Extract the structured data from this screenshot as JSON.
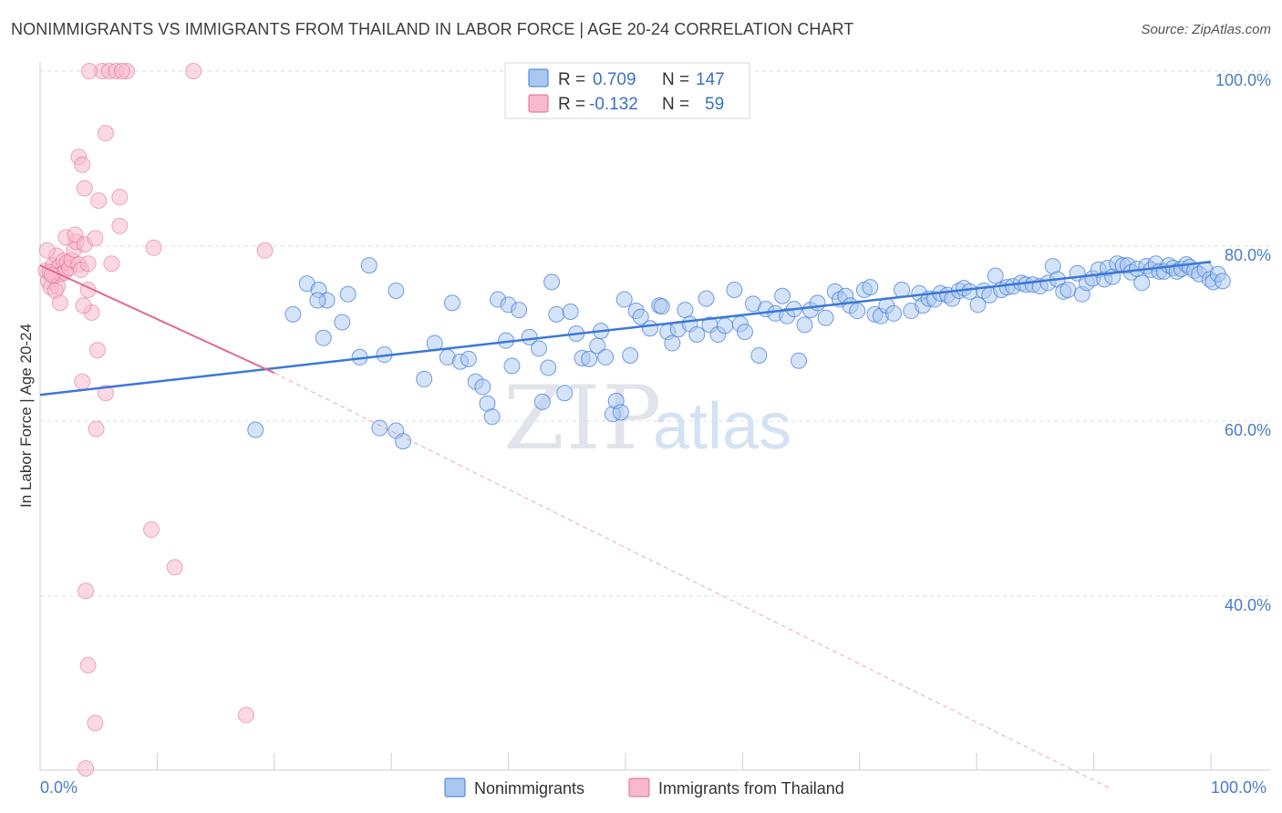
{
  "title": "NONIMMIGRANTS VS IMMIGRANTS FROM THAILAND IN LABOR FORCE | AGE 20-24 CORRELATION CHART",
  "source": "Source: ZipAtlas.com",
  "watermark": {
    "zip": "ZIP",
    "atlas": "atlas"
  },
  "legend_top": {
    "rows": [
      {
        "r_label": "R =",
        "r_value": "0.709",
        "n_label": "N =",
        "n_value": "147",
        "color": "#a9c8f0"
      },
      {
        "r_label": "R =",
        "r_value": "-0.132",
        "n_label": "N =",
        "n_value": "59",
        "color": "#f7b9cb"
      }
    ]
  },
  "legend_bottom": {
    "items": [
      {
        "label": "Nonimmigrants",
        "color": "#a9c8f0"
      },
      {
        "label": "Immigrants from Thailand",
        "color": "#f7b9cb"
      }
    ]
  },
  "chart_data": {
    "type": "scatter",
    "title": "NONIMMIGRANTS VS IMMIGRANTS FROM THAILAND IN LABOR FORCE | AGE 20-24 CORRELATION CHART",
    "xlabel": "",
    "ylabel": "In Labor Force | Age 20-24",
    "xlim": [
      0,
      100
    ],
    "ylim": [
      18,
      100
    ],
    "x_tick_labels": [
      "0.0%",
      "100.0%"
    ],
    "y_ticks": [
      40,
      60,
      80,
      100
    ],
    "y_tick_labels": [
      "40.0%",
      "60.0%",
      "80.0%",
      "100.0%"
    ],
    "series": [
      {
        "name": "Nonimmigrants",
        "color": "#3b78d8",
        "fill": "#a9c8f0",
        "r": 0.709,
        "n": 147,
        "trend": {
          "x": [
            0,
            100
          ],
          "y": [
            63.0,
            78.2
          ],
          "style": "solid"
        },
        "points": [
          [
            21.6,
            72.2
          ],
          [
            22.8,
            75.7
          ],
          [
            23.8,
            75.0
          ],
          [
            24.5,
            73.8
          ],
          [
            24.2,
            69.5
          ],
          [
            25.8,
            71.3
          ],
          [
            27.3,
            67.3
          ],
          [
            28.1,
            77.8
          ],
          [
            29.4,
            67.6
          ],
          [
            30.4,
            74.9
          ],
          [
            32.8,
            64.8
          ],
          [
            33.7,
            68.9
          ],
          [
            34.8,
            67.3
          ],
          [
            35.2,
            73.5
          ],
          [
            35.9,
            66.8
          ],
          [
            36.6,
            67.1
          ],
          [
            37.2,
            64.5
          ],
          [
            37.8,
            63.9
          ],
          [
            38.2,
            62.0
          ],
          [
            38.6,
            60.5
          ],
          [
            39.1,
            73.9
          ],
          [
            39.8,
            69.2
          ],
          [
            40.0,
            73.3
          ],
          [
            40.3,
            66.3
          ],
          [
            40.9,
            72.7
          ],
          [
            41.8,
            69.6
          ],
          [
            42.6,
            68.3
          ],
          [
            42.9,
            62.2
          ],
          [
            43.4,
            66.1
          ],
          [
            43.7,
            75.9
          ],
          [
            44.1,
            72.2
          ],
          [
            44.8,
            63.2
          ],
          [
            45.3,
            72.5
          ],
          [
            45.8,
            70.0
          ],
          [
            46.3,
            67.2
          ],
          [
            46.9,
            67.1
          ],
          [
            47.6,
            68.6
          ],
          [
            47.9,
            70.3
          ],
          [
            48.3,
            67.3
          ],
          [
            48.9,
            60.8
          ],
          [
            49.2,
            62.3
          ],
          [
            49.9,
            73.9
          ],
          [
            50.4,
            67.5
          ],
          [
            50.9,
            72.6
          ],
          [
            51.3,
            71.9
          ],
          [
            52.1,
            70.6
          ],
          [
            52.9,
            73.2
          ],
          [
            53.1,
            73.1
          ],
          [
            53.6,
            70.2
          ],
          [
            54.0,
            68.9
          ],
          [
            54.5,
            70.5
          ],
          [
            55.1,
            72.7
          ],
          [
            55.5,
            71.1
          ],
          [
            56.1,
            69.9
          ],
          [
            56.9,
            74.0
          ],
          [
            57.2,
            71.0
          ],
          [
            57.9,
            69.9
          ],
          [
            58.5,
            70.9
          ],
          [
            59.3,
            75.0
          ],
          [
            59.8,
            71.1
          ],
          [
            60.2,
            70.2
          ],
          [
            60.9,
            73.4
          ],
          [
            61.4,
            67.5
          ],
          [
            62.0,
            72.8
          ],
          [
            62.8,
            72.3
          ],
          [
            63.4,
            74.3
          ],
          [
            63.8,
            72.0
          ],
          [
            64.4,
            72.8
          ],
          [
            64.8,
            66.9
          ],
          [
            65.3,
            71.0
          ],
          [
            65.8,
            72.7
          ],
          [
            66.4,
            73.5
          ],
          [
            67.1,
            71.8
          ],
          [
            67.9,
            74.8
          ],
          [
            68.3,
            73.9
          ],
          [
            68.8,
            74.3
          ],
          [
            69.2,
            73.2
          ],
          [
            69.8,
            72.6
          ],
          [
            70.4,
            75.0
          ],
          [
            70.9,
            75.3
          ],
          [
            71.3,
            72.2
          ],
          [
            71.8,
            72.0
          ],
          [
            72.3,
            73.2
          ],
          [
            72.9,
            72.3
          ],
          [
            73.6,
            75.0
          ],
          [
            74.4,
            72.6
          ],
          [
            75.1,
            74.6
          ],
          [
            75.4,
            73.2
          ],
          [
            75.9,
            74.0
          ],
          [
            76.4,
            73.9
          ],
          [
            76.9,
            74.6
          ],
          [
            77.5,
            74.4
          ],
          [
            77.9,
            74.0
          ],
          [
            78.5,
            74.9
          ],
          [
            78.9,
            75.2
          ],
          [
            79.4,
            74.8
          ],
          [
            80.1,
            73.3
          ],
          [
            80.6,
            74.9
          ],
          [
            81.1,
            74.4
          ],
          [
            81.6,
            76.6
          ],
          [
            82.1,
            75.0
          ],
          [
            82.6,
            75.3
          ],
          [
            83.1,
            75.4
          ],
          [
            83.8,
            75.8
          ],
          [
            84.2,
            75.6
          ],
          [
            84.8,
            75.6
          ],
          [
            85.4,
            75.4
          ],
          [
            86.1,
            75.8
          ],
          [
            86.5,
            77.7
          ],
          [
            86.9,
            76.2
          ],
          [
            87.4,
            74.8
          ],
          [
            87.8,
            75.0
          ],
          [
            88.6,
            76.9
          ],
          [
            89.0,
            74.5
          ],
          [
            89.4,
            75.8
          ],
          [
            89.9,
            76.3
          ],
          [
            90.4,
            77.3
          ],
          [
            90.9,
            76.2
          ],
          [
            91.2,
            77.5
          ],
          [
            91.6,
            76.5
          ],
          [
            92.0,
            78.0
          ],
          [
            92.5,
            77.8
          ],
          [
            92.9,
            77.8
          ],
          [
            93.2,
            77.0
          ],
          [
            93.7,
            77.4
          ],
          [
            94.1,
            75.8
          ],
          [
            94.5,
            77.7
          ],
          [
            94.9,
            77.3
          ],
          [
            95.3,
            78.0
          ],
          [
            95.6,
            77.1
          ],
          [
            96.0,
            77.1
          ],
          [
            96.4,
            77.8
          ],
          [
            96.8,
            77.5
          ],
          [
            97.1,
            77.1
          ],
          [
            97.5,
            77.4
          ],
          [
            97.9,
            77.9
          ],
          [
            98.2,
            77.6
          ],
          [
            98.6,
            77.2
          ],
          [
            99.0,
            76.8
          ],
          [
            99.5,
            77.3
          ],
          [
            99.9,
            76.2
          ],
          [
            100.2,
            75.9
          ],
          [
            100.6,
            76.8
          ],
          [
            101.0,
            76.0
          ],
          [
            18.4,
            59.0
          ],
          [
            29.0,
            59.2
          ],
          [
            30.4,
            58.9
          ],
          [
            31.0,
            57.7
          ],
          [
            23.7,
            73.8
          ],
          [
            26.3,
            74.5
          ],
          [
            49.6,
            61.0
          ]
        ]
      },
      {
        "name": "Immigrants from Thailand",
        "color": "#e06a92",
        "fill": "#f7b9cb",
        "r": -0.132,
        "n": 59,
        "trend": {
          "x": [
            0,
            20
          ],
          "y": [
            77.8,
            65.5
          ],
          "style": "solid"
        },
        "trend_extension": {
          "x": [
            20,
            91.4
          ],
          "y": [
            65.5,
            18
          ],
          "style": "dashed"
        },
        "points": [
          [
            0.5,
            77.2
          ],
          [
            0.7,
            76.0
          ],
          [
            0.9,
            75.3
          ],
          [
            1.1,
            77.8
          ],
          [
            1.2,
            76.6
          ],
          [
            1.4,
            78.9
          ],
          [
            1.5,
            75.4
          ],
          [
            1.6,
            77.6
          ],
          [
            1.8,
            76.8
          ],
          [
            2.0,
            78.3
          ],
          [
            2.1,
            77.0
          ],
          [
            2.3,
            78.1
          ],
          [
            2.5,
            77.5
          ],
          [
            2.7,
            78.4
          ],
          [
            2.9,
            79.6
          ],
          [
            3.1,
            80.5
          ],
          [
            3.3,
            77.9
          ],
          [
            0.6,
            79.5
          ],
          [
            0.8,
            77.0
          ],
          [
            1.0,
            76.7
          ],
          [
            1.3,
            74.9
          ],
          [
            1.7,
            73.5
          ],
          [
            2.2,
            81.0
          ],
          [
            3.0,
            81.3
          ],
          [
            3.5,
            77.3
          ],
          [
            3.8,
            80.2
          ],
          [
            4.1,
            78.0
          ],
          [
            4.4,
            72.4
          ],
          [
            4.9,
            68.1
          ],
          [
            5.6,
            63.2
          ],
          [
            3.7,
            73.2
          ],
          [
            4.1,
            75.0
          ],
          [
            3.3,
            90.2
          ],
          [
            3.6,
            89.3
          ],
          [
            5.3,
            100
          ],
          [
            4.2,
            100
          ],
          [
            5.9,
            100
          ],
          [
            6.5,
            100
          ],
          [
            7.4,
            100
          ],
          [
            7.0,
            100
          ],
          [
            13.1,
            100
          ],
          [
            5.6,
            92.9
          ],
          [
            3.8,
            86.6
          ],
          [
            5.0,
            85.2
          ],
          [
            6.8,
            82.3
          ],
          [
            6.8,
            85.6
          ],
          [
            3.6,
            64.5
          ],
          [
            4.7,
            80.9
          ],
          [
            9.7,
            79.8
          ],
          [
            19.2,
            79.5
          ],
          [
            6.1,
            78.0
          ],
          [
            4.8,
            59.1
          ],
          [
            9.5,
            47.6
          ],
          [
            11.5,
            43.3
          ],
          [
            3.9,
            40.6
          ],
          [
            4.1,
            32.1
          ],
          [
            4.7,
            25.5
          ],
          [
            17.6,
            26.4
          ],
          [
            3.9,
            20.3
          ]
        ]
      }
    ]
  }
}
